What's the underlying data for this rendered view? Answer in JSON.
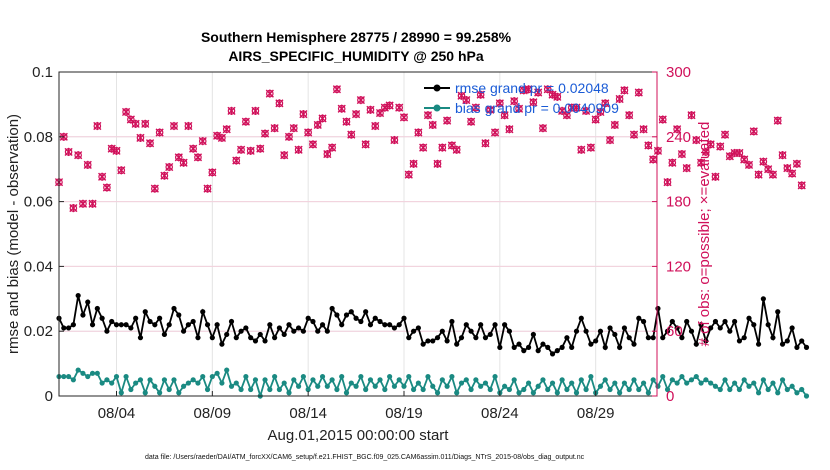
{
  "chart_data": {
    "type": "line",
    "title_line1": "Southern Hemisphere 28775 / 28990 = 99.258%",
    "title_line2": "AIRS_SPECIFIC_HUMIDITY @ 250 hPa",
    "ylabel_left": "rmse and bias (model - observation)",
    "ylabel_right": "# of obs: o=possible; ×=evaluated",
    "xlabel": "Aug.01,2015 00:00:00 start",
    "footer": "data file: /Users/raeder/DAI/ATM_forcXX/CAM6_setup/f.e21.FHIST_BGC.f09_025.CAM6assim.011/Diags_NTrS_2015-08/obs_diag_output.nc",
    "xlim": [
      1,
      32.2
    ],
    "ylim_left": [
      0,
      0.1
    ],
    "ylim_right": [
      0,
      300
    ],
    "x_ticks": [
      4,
      9,
      14,
      19,
      24,
      29
    ],
    "x_tick_labels": [
      "08/04",
      "08/09",
      "08/14",
      "08/19",
      "08/24",
      "08/29"
    ],
    "y_ticks_left": [
      0,
      0.02,
      0.04,
      0.06,
      0.08,
      0.1
    ],
    "y_tick_labels_left": [
      "0",
      "0.02",
      "0.04",
      "0.06",
      "0.08",
      "0.1"
    ],
    "y_ticks_right": [
      0,
      60,
      120,
      180,
      240,
      300
    ],
    "y_tick_labels_right": [
      "0",
      "60",
      "120",
      "180",
      "240",
      "300"
    ],
    "legend": [
      {
        "name": "rmse grand pr = 0.02048",
        "color": "#000000"
      },
      {
        "name": "bias grand pr = 0.0040909",
        "color": "#1a8a82"
      }
    ],
    "colors": {
      "rmse": "#000000",
      "bias": "#1a8a82",
      "obs": "#d0105a",
      "grid": "#e4e4e4"
    },
    "x_start": 1.0,
    "x_step": 0.25,
    "series": [
      {
        "name": "rmse",
        "axis": "left",
        "values": [
          0.024,
          0.021,
          0.021,
          0.022,
          0.031,
          0.025,
          0.029,
          0.022,
          0.027,
          0.024,
          0.02,
          0.023,
          0.022,
          0.022,
          0.022,
          0.021,
          0.024,
          0.018,
          0.026,
          0.023,
          0.022,
          0.024,
          0.019,
          0.022,
          0.027,
          0.025,
          0.02,
          0.022,
          0.023,
          0.018,
          0.026,
          0.022,
          0.018,
          0.022,
          0.016,
          0.019,
          0.023,
          0.018,
          0.02,
          0.021,
          0.018,
          0.017,
          0.019,
          0.017,
          0.022,
          0.018,
          0.021,
          0.019,
          0.022,
          0.02,
          0.021,
          0.02,
          0.024,
          0.023,
          0.02,
          0.022,
          0.02,
          0.027,
          0.025,
          0.022,
          0.025,
          0.026,
          0.024,
          0.023,
          0.026,
          0.022,
          0.024,
          0.023,
          0.022,
          0.022,
          0.021,
          0.022,
          0.024,
          0.018,
          0.02,
          0.021,
          0.016,
          0.017,
          0.017,
          0.018,
          0.02,
          0.017,
          0.023,
          0.016,
          0.018,
          0.022,
          0.02,
          0.018,
          0.022,
          0.018,
          0.019,
          0.022,
          0.015,
          0.022,
          0.02,
          0.015,
          0.016,
          0.014,
          0.015,
          0.019,
          0.014,
          0.016,
          0.015,
          0.013,
          0.014,
          0.015,
          0.018,
          0.015,
          0.02,
          0.024,
          0.02,
          0.016,
          0.017,
          0.02,
          0.015,
          0.021,
          0.019,
          0.015,
          0.021,
          0.018,
          0.016,
          0.024,
          0.023,
          0.018,
          0.018,
          0.027,
          0.018,
          0.02,
          0.023,
          0.021,
          0.018,
          0.023,
          0.02,
          0.016,
          0.022,
          0.017,
          0.021,
          0.023,
          0.021,
          0.023,
          0.02,
          0.023,
          0.017,
          0.018,
          0.024,
          0.022,
          0.016,
          0.03,
          0.022,
          0.018,
          0.026,
          0.016,
          0.017,
          0.021,
          0.015,
          0.017,
          0.015
        ]
      },
      {
        "name": "bias",
        "axis": "left",
        "values": [
          0.006,
          0.006,
          0.006,
          0.005,
          0.008,
          0.007,
          0.006,
          0.007,
          0.007,
          0.004,
          0.005,
          0.004,
          0.006,
          0.001,
          0.006,
          0.002,
          0.004,
          0.005,
          0.001,
          0.005,
          0.003,
          0.001,
          0.005,
          0.002,
          0.005,
          0.001,
          0.003,
          0.004,
          0.005,
          0.004,
          0.006,
          0.002,
          0.006,
          0.007,
          0.004,
          0.008,
          0.003,
          0.004,
          0.002,
          0.006,
          0.002,
          0.005,
          0.0,
          0.005,
          0.002,
          0.006,
          0.002,
          0.004,
          0.001,
          0.005,
          0.003,
          0.006,
          0.002,
          0.005,
          0.003,
          0.006,
          0.003,
          0.005,
          0.002,
          0.006,
          0.001,
          0.004,
          0.003,
          0.006,
          0.002,
          0.005,
          0.003,
          0.005,
          0.002,
          0.006,
          0.003,
          0.005,
          0.003,
          0.006,
          0.002,
          0.004,
          0.002,
          0.006,
          0.003,
          0.001,
          0.005,
          0.003,
          0.006,
          0.001,
          0.004,
          0.005,
          0.002,
          0.005,
          0.003,
          0.004,
          0.002,
          0.006,
          0.001,
          0.003,
          0.002,
          0.005,
          0.001,
          0.002,
          0.004,
          0.001,
          0.003,
          0.005,
          0.002,
          0.004,
          0.001,
          0.005,
          0.002,
          0.004,
          0.001,
          0.005,
          0.002,
          0.006,
          0.001,
          0.003,
          0.005,
          0.002,
          0.004,
          0.001,
          0.004,
          0.002,
          0.005,
          0.002,
          0.004,
          0.001,
          0.005,
          0.003,
          0.006,
          0.002,
          0.005,
          0.004,
          0.006,
          0.004,
          0.005,
          0.006,
          0.004,
          0.005,
          0.004,
          0.003,
          0.002,
          0.005,
          0.002,
          0.004,
          0.002,
          0.005,
          0.003,
          0.004,
          0.001,
          0.005,
          0.002,
          0.004,
          0.001,
          0.005,
          0.002,
          0.003,
          0.001,
          0.002,
          0.0
        ]
      },
      {
        "name": "obs_possible",
        "axis": "right",
        "values": [
          198,
          240,
          226,
          174,
          223,
          178,
          214,
          178,
          250,
          203,
          193,
          229,
          227,
          209,
          263,
          256,
          252,
          239,
          252,
          234,
          192,
          244,
          204,
          212,
          250,
          221,
          216,
          250,
          229,
          221,
          236,
          192,
          207,
          241,
          239,
          247,
          264,
          218,
          228,
          254,
          227,
          264,
          229,
          243,
          280,
          248,
          271,
          223,
          240,
          248,
          228,
          261,
          244,
          233,
          251,
          257,
          224,
          230,
          284,
          266,
          254,
          242,
          261,
          274,
          233,
          265,
          250,
          262,
          267,
          269,
          237,
          267,
          258,
          205,
          215,
          244,
          230,
          260,
          251,
          215,
          230,
          255,
          232,
          228,
          278,
          274,
          254,
          267,
          279,
          234,
          265,
          244,
          271,
          260,
          247,
          273,
          266,
          283,
          284,
          272,
          281,
          248,
          284,
          279,
          277,
          264,
          260,
          267,
          267,
          228,
          264,
          230,
          256,
          263,
          271,
          237,
          251,
          275,
          283,
          260,
          242,
          281,
          247,
          232,
          219,
          227,
          256,
          198,
          216,
          247,
          224,
          211,
          260,
          237,
          216,
          226,
          233,
          203,
          231,
          242,
          222,
          225,
          225,
          219,
          214,
          245,
          205,
          217,
          210,
          205,
          255,
          223,
          211,
          206,
          215,
          195
        ]
      },
      {
        "name": "obs_evaluated",
        "axis": "right",
        "values": [
          198,
          240,
          226,
          174,
          223,
          178,
          214,
          178,
          250,
          203,
          193,
          229,
          227,
          209,
          263,
          256,
          252,
          239,
          252,
          234,
          192,
          244,
          204,
          212,
          250,
          221,
          216,
          250,
          229,
          221,
          236,
          192,
          207,
          241,
          239,
          247,
          264,
          218,
          228,
          254,
          227,
          264,
          229,
          243,
          280,
          248,
          271,
          223,
          240,
          248,
          228,
          261,
          244,
          233,
          251,
          257,
          224,
          230,
          284,
          266,
          254,
          242,
          261,
          274,
          233,
          265,
          250,
          262,
          267,
          269,
          237,
          267,
          258,
          205,
          215,
          244,
          230,
          260,
          251,
          215,
          230,
          255,
          232,
          228,
          278,
          274,
          254,
          267,
          279,
          234,
          265,
          244,
          271,
          260,
          247,
          273,
          266,
          283,
          284,
          272,
          281,
          248,
          284,
          279,
          277,
          264,
          260,
          267,
          267,
          228,
          264,
          230,
          256,
          263,
          271,
          237,
          251,
          275,
          283,
          260,
          242,
          281,
          247,
          232,
          219,
          227,
          256,
          198,
          216,
          247,
          224,
          211,
          260,
          237,
          216,
          226,
          233,
          203,
          231,
          242,
          222,
          225,
          225,
          219,
          214,
          245,
          205,
          217,
          210,
          205,
          255,
          223,
          211,
          206,
          215,
          195
        ]
      }
    ]
  }
}
